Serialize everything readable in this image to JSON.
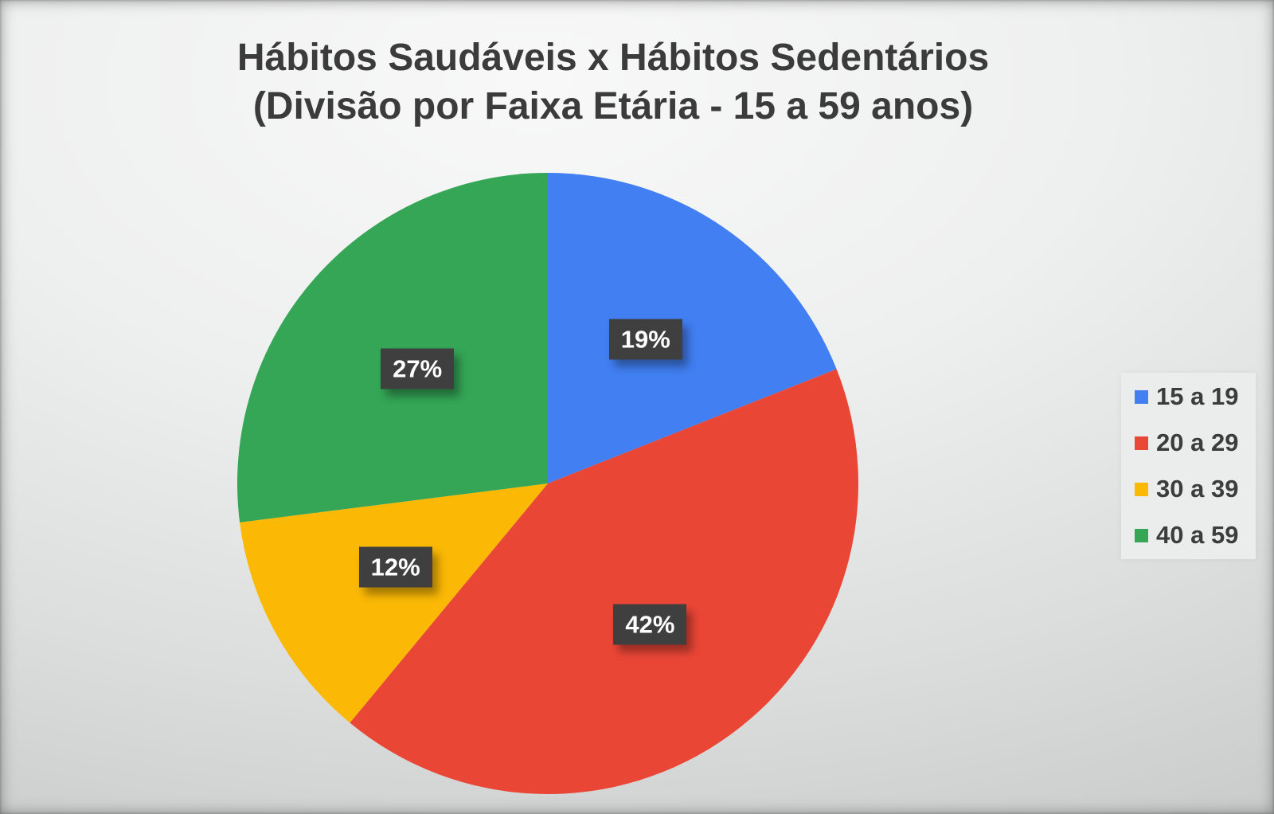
{
  "title": {
    "line1": "Hábitos Saudáveis x Hábitos Sedentários",
    "line2": "(Divisão por Faixa Etária - 15 a 59 anos)"
  },
  "chart_data": {
    "type": "pie",
    "title": "Hábitos Saudáveis x Hábitos Sedentários (Divisão por Faixa Etária - 15 a 59 anos)",
    "categories": [
      "15 a 19",
      "20 a 29",
      "30 a 39",
      "40 a 59"
    ],
    "values": [
      19,
      42,
      12,
      27
    ],
    "unit": "%",
    "slice_labels": [
      "19%",
      "42%",
      "12%",
      "27%"
    ],
    "colors": [
      "#417FF2",
      "#EA4636",
      "#FBB805",
      "#34A656"
    ],
    "start_angle_deg": 0,
    "direction": "clockwise",
    "legend_position": "right",
    "label_background": "#3F3F3F",
    "label_text_color": "#FFFFFF"
  },
  "legend": {
    "items": [
      {
        "label": "15 a 19",
        "color": "#417FF2"
      },
      {
        "label": "20 a 29",
        "color": "#EA4636"
      },
      {
        "label": "30 a 39",
        "color": "#FBB805"
      },
      {
        "label": "40 a 59",
        "color": "#34A656"
      }
    ]
  }
}
